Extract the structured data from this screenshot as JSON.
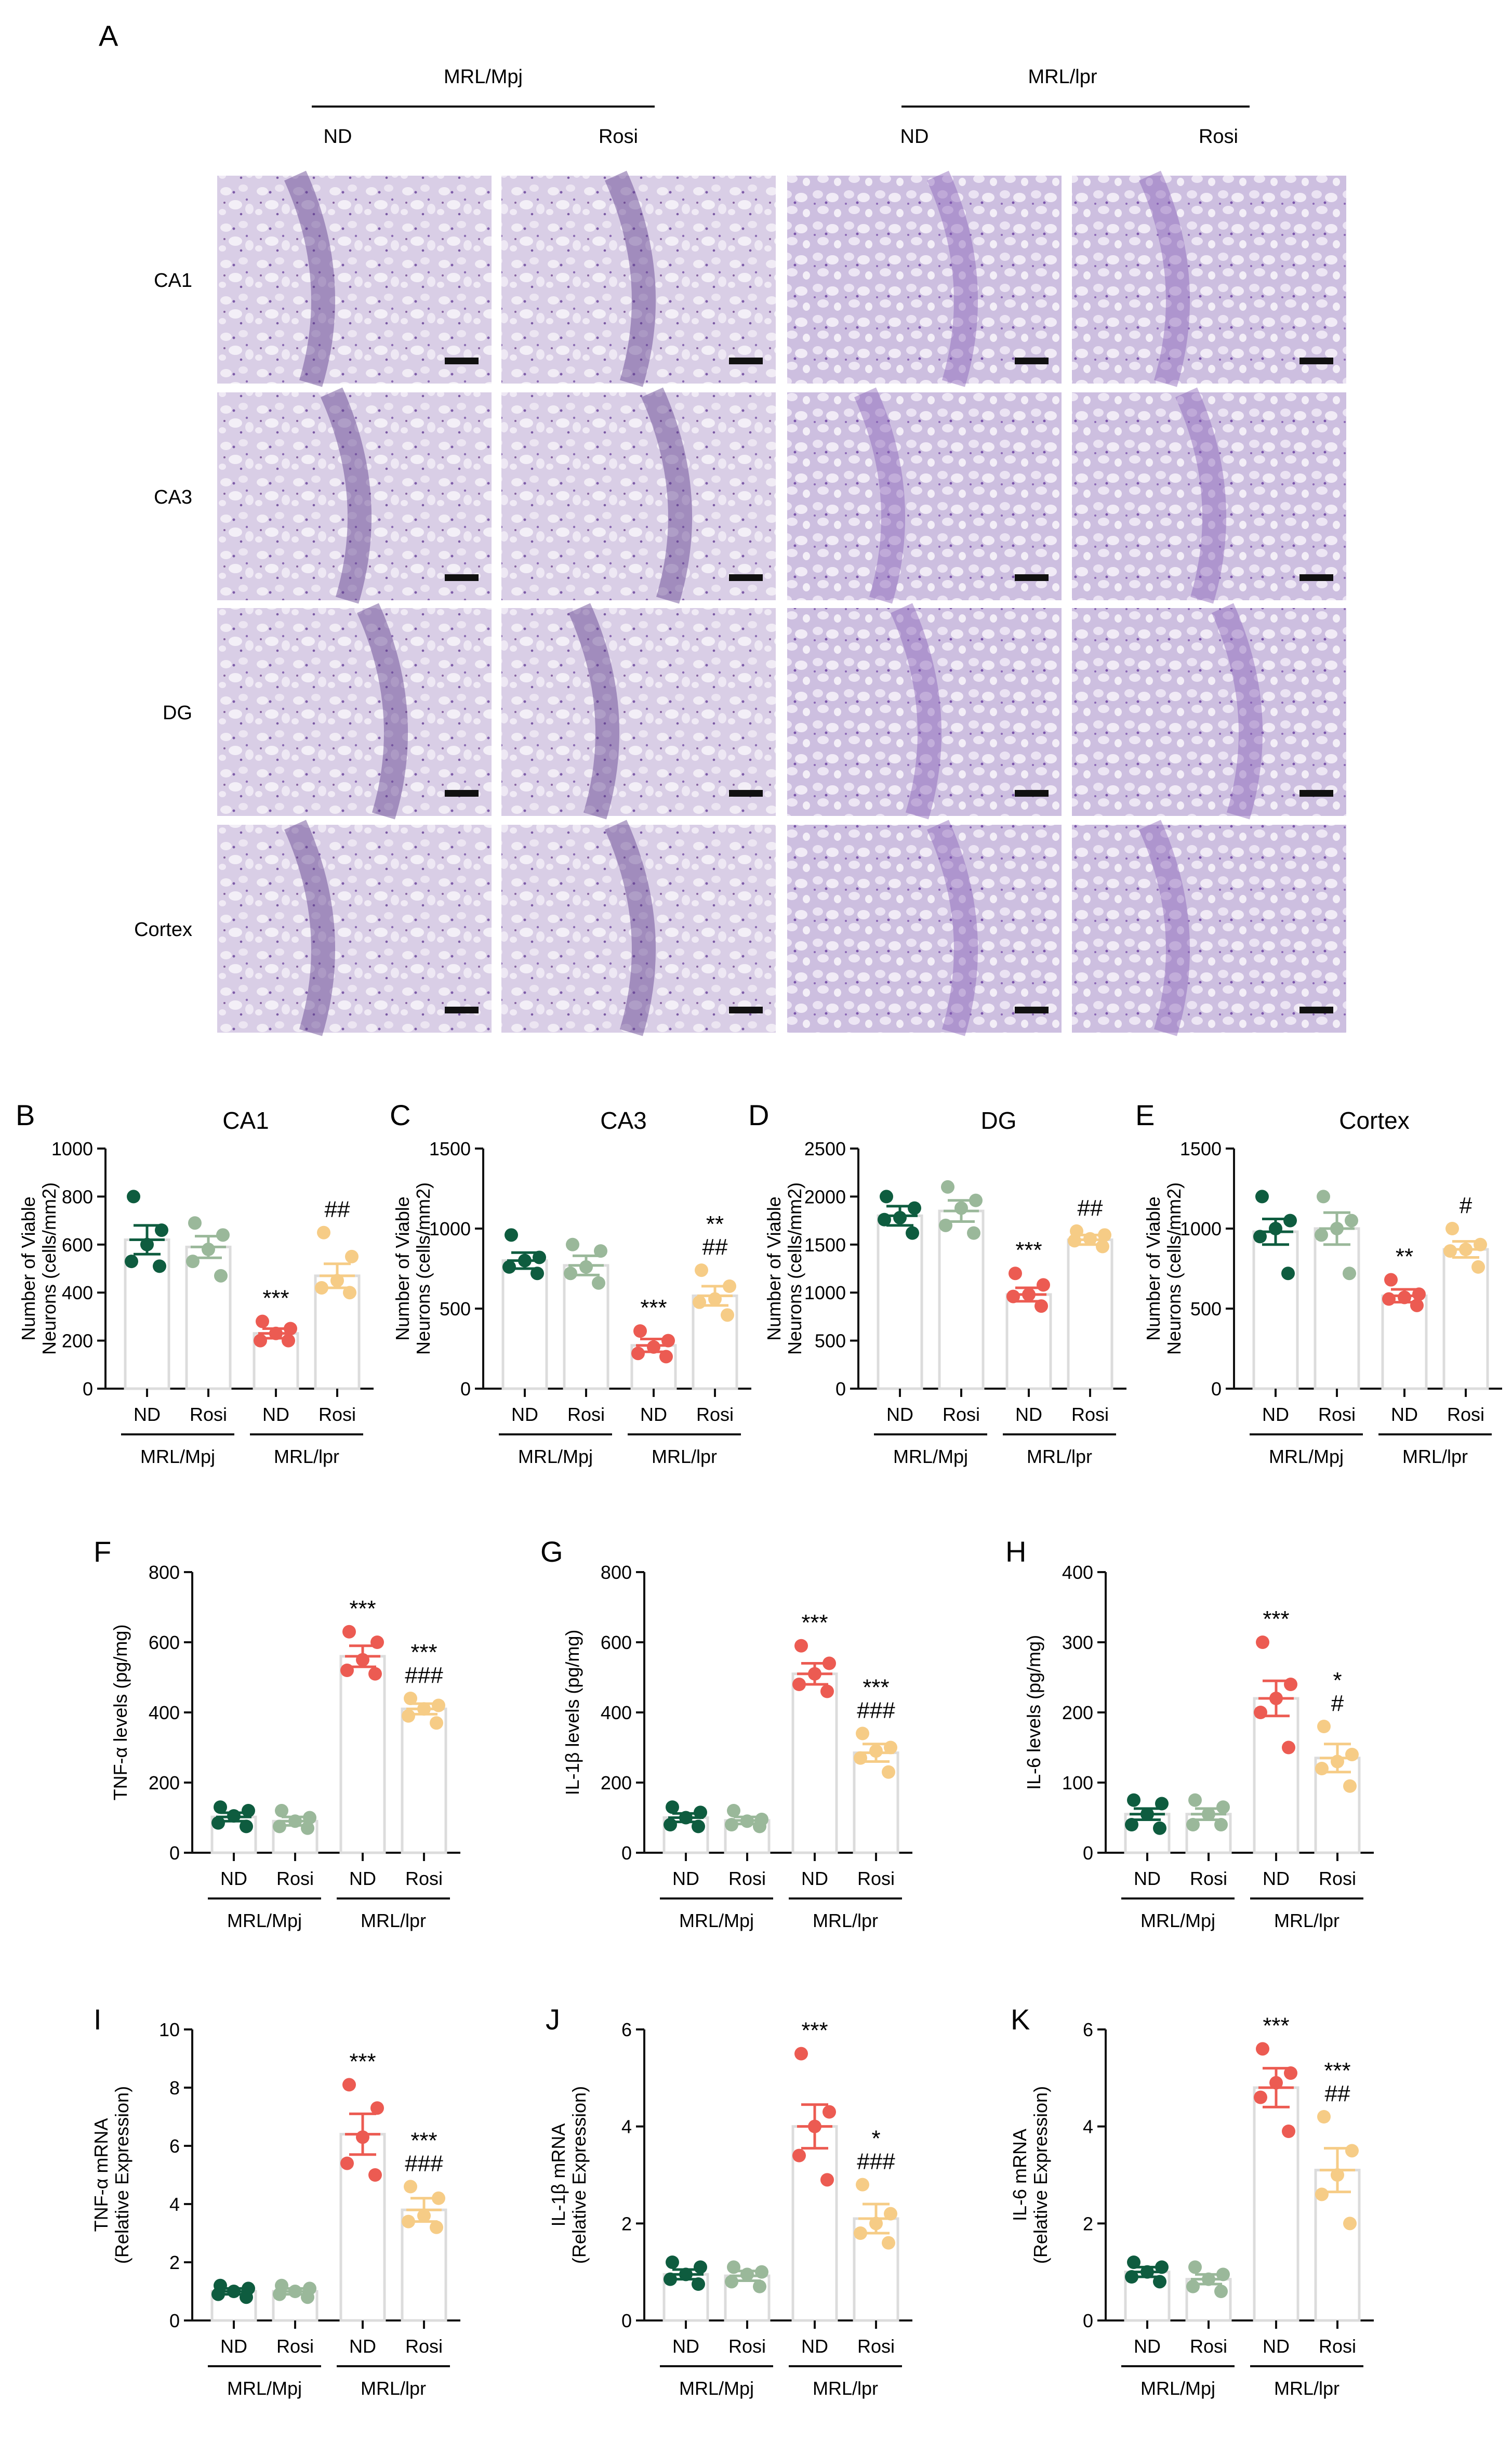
{
  "figure": {
    "panel_A": {
      "letter": "A",
      "strains": [
        "MRL/Mpj",
        "MRL/lpr"
      ],
      "conditions": [
        "ND",
        "Rosi",
        "ND",
        "Rosi"
      ],
      "regions": [
        "CA1",
        "CA3",
        "DG",
        "Cortex"
      ]
    },
    "colors": {
      "mpj_nd": "#0e5c3f",
      "mpj_rosi": "#9ab89a",
      "lpr_nd": "#ec5b52",
      "lpr_rosi": "#f6cc86",
      "bar_outline": "#dcdcdc",
      "tissue": "#cfc2de"
    },
    "group_labels": {
      "categories": [
        "ND",
        "Rosi",
        "ND",
        "Rosi"
      ],
      "strains": [
        "MRL/Mpj",
        "MRL/lpr"
      ]
    }
  },
  "chart_data": [
    {
      "panel": "B",
      "type": "bar",
      "title": "CA1",
      "ylabel": [
        "Number of Viable",
        "Neurons (cells/mm2)"
      ],
      "ylim": [
        0,
        1000
      ],
      "yticks": [
        0,
        200,
        400,
        600,
        800,
        1000
      ],
      "categories": [
        "ND",
        "Rosi",
        "ND",
        "Rosi"
      ],
      "means": [
        620,
        590,
        230,
        470
      ],
      "sem": [
        60,
        45,
        20,
        50
      ],
      "points": [
        [
          800,
          660,
          600,
          530,
          510
        ],
        [
          690,
          640,
          580,
          530,
          470
        ],
        [
          280,
          250,
          230,
          200,
          200
        ],
        [
          650,
          550,
          450,
          420,
          400
        ]
      ],
      "annotations": [
        [],
        [],
        [
          "***"
        ],
        [
          "##"
        ]
      ]
    },
    {
      "panel": "C",
      "type": "bar",
      "title": "CA3",
      "ylabel": [
        "Number of Viable",
        "Neurons (cells/mm2)"
      ],
      "ylim": [
        0,
        1500
      ],
      "yticks": [
        0,
        500,
        1000,
        1500
      ],
      "categories": [
        "ND",
        "Rosi",
        "ND",
        "Rosi"
      ],
      "means": [
        800,
        770,
        270,
        580
      ],
      "sem": [
        50,
        60,
        40,
        60
      ],
      "points": [
        [
          960,
          820,
          800,
          760,
          720
        ],
        [
          900,
          860,
          760,
          720,
          660
        ],
        [
          360,
          300,
          260,
          220,
          200
        ],
        [
          740,
          640,
          560,
          540,
          460
        ]
      ],
      "annotations": [
        [],
        [],
        [
          "***"
        ],
        [
          "**",
          "##"
        ]
      ]
    },
    {
      "panel": "D",
      "type": "bar",
      "title": "DG",
      "ylabel": [
        "Number of Viable",
        "Neurons (cells/mm2)"
      ],
      "ylim": [
        0,
        2500
      ],
      "yticks": [
        0,
        500,
        1000,
        1500,
        2000,
        2500
      ],
      "categories": [
        "ND",
        "Rosi",
        "ND",
        "Rosi"
      ],
      "means": [
        1800,
        1850,
        980,
        1550
      ],
      "sem": [
        100,
        110,
        70,
        50
      ],
      "points": [
        [
          2000,
          1880,
          1780,
          1760,
          1620
        ],
        [
          2100,
          1960,
          1880,
          1700,
          1620
        ],
        [
          1200,
          1080,
          980,
          960,
          860
        ],
        [
          1640,
          1600,
          1560,
          1540,
          1480
        ]
      ],
      "annotations": [
        [],
        [],
        [
          "***"
        ],
        [
          "##"
        ]
      ]
    },
    {
      "panel": "E",
      "type": "bar",
      "title": "Cortex",
      "ylabel": [
        "Number of Viable",
        "Neurons (cells/mm2)"
      ],
      "ylim": [
        0,
        1500
      ],
      "yticks": [
        0,
        500,
        1000,
        1500
      ],
      "categories": [
        "ND",
        "Rosi",
        "ND",
        "Rosi"
      ],
      "means": [
        980,
        1000,
        580,
        870
      ],
      "sem": [
        80,
        100,
        40,
        50
      ],
      "points": [
        [
          1200,
          1050,
          1000,
          950,
          720
        ],
        [
          1200,
          1050,
          1000,
          960,
          720
        ],
        [
          680,
          590,
          570,
          560,
          520
        ],
        [
          1000,
          900,
          870,
          860,
          760
        ]
      ],
      "annotations": [
        [],
        [],
        [
          "**"
        ],
        [
          "#"
        ]
      ]
    },
    {
      "panel": "F",
      "type": "bar",
      "title": "",
      "ylabel": [
        "TNF-α levels (pg/mg)"
      ],
      "ylim": [
        0,
        800
      ],
      "yticks": [
        0,
        200,
        400,
        600,
        800
      ],
      "categories": [
        "ND",
        "Rosi",
        "ND",
        "Rosi"
      ],
      "means": [
        102,
        90,
        560,
        410
      ],
      "sem": [
        12,
        12,
        30,
        15
      ],
      "points": [
        [
          130,
          120,
          105,
          85,
          75
        ],
        [
          120,
          100,
          90,
          75,
          70
        ],
        [
          630,
          600,
          550,
          520,
          510
        ],
        [
          440,
          420,
          410,
          390,
          370
        ]
      ],
      "annotations": [
        [],
        [],
        [
          "***"
        ],
        [
          "***",
          "###"
        ]
      ]
    },
    {
      "panel": "G",
      "type": "bar",
      "title": "",
      "ylabel": [
        "IL-1β levels (pg/mg)"
      ],
      "ylim": [
        0,
        800
      ],
      "yticks": [
        0,
        200,
        400,
        600,
        800
      ],
      "categories": [
        "ND",
        "Rosi",
        "ND",
        "Rosi"
      ],
      "means": [
        100,
        92,
        510,
        285
      ],
      "sem": [
        12,
        10,
        30,
        25
      ],
      "points": [
        [
          130,
          115,
          100,
          80,
          75
        ],
        [
          120,
          95,
          90,
          80,
          75
        ],
        [
          590,
          540,
          510,
          480,
          460
        ],
        [
          340,
          300,
          290,
          270,
          230
        ]
      ],
      "annotations": [
        [],
        [],
        [
          "***"
        ],
        [
          "***",
          "###"
        ]
      ]
    },
    {
      "panel": "H",
      "type": "bar",
      "title": "",
      "ylabel": [
        "IL-6 levels (pg/mg)"
      ],
      "ylim": [
        0,
        400
      ],
      "yticks": [
        0,
        100,
        200,
        300,
        400
      ],
      "categories": [
        "ND",
        "Rosi",
        "ND",
        "Rosi"
      ],
      "means": [
        55,
        55,
        220,
        135
      ],
      "sem": [
        8,
        8,
        25,
        20
      ],
      "points": [
        [
          75,
          70,
          55,
          40,
          35
        ],
        [
          75,
          65,
          55,
          40,
          40
        ],
        [
          300,
          240,
          220,
          200,
          150
        ],
        [
          180,
          140,
          130,
          120,
          95
        ]
      ],
      "annotations": [
        [],
        [],
        [
          "***"
        ],
        [
          "*",
          "#"
        ]
      ]
    },
    {
      "panel": "I",
      "type": "bar",
      "title": "",
      "ylabel": [
        "TNF-α  mRNA",
        "(Relative Expression)"
      ],
      "ylim": [
        0,
        10
      ],
      "yticks": [
        0,
        2,
        4,
        6,
        8,
        10
      ],
      "categories": [
        "ND",
        "Rosi",
        "ND",
        "Rosi"
      ],
      "means": [
        1.0,
        1.0,
        6.4,
        3.8
      ],
      "sem": [
        0.1,
        0.1,
        0.7,
        0.4
      ],
      "points": [
        [
          1.2,
          1.1,
          1.0,
          0.9,
          0.8
        ],
        [
          1.2,
          1.1,
          1.0,
          0.9,
          0.8
        ],
        [
          8.1,
          7.3,
          6.3,
          5.4,
          5.0
        ],
        [
          4.6,
          4.2,
          3.6,
          3.4,
          3.2
        ]
      ],
      "annotations": [
        [],
        [],
        [
          "***"
        ],
        [
          "***",
          "###"
        ]
      ]
    },
    {
      "panel": "J",
      "type": "bar",
      "title": "",
      "ylabel": [
        "IL-1β  mRNA",
        "(Relative Expression)"
      ],
      "ylim": [
        0,
        6
      ],
      "yticks": [
        0,
        2,
        4,
        6
      ],
      "categories": [
        "ND",
        "Rosi",
        "ND",
        "Rosi"
      ],
      "means": [
        0.95,
        0.92,
        4.0,
        2.1
      ],
      "sem": [
        0.1,
        0.1,
        0.45,
        0.3
      ],
      "points": [
        [
          1.2,
          1.1,
          0.95,
          0.85,
          0.75
        ],
        [
          1.1,
          1.0,
          0.95,
          0.8,
          0.7
        ],
        [
          5.5,
          4.3,
          4.0,
          3.4,
          2.9
        ],
        [
          2.8,
          2.2,
          2.0,
          1.8,
          1.6
        ]
      ],
      "annotations": [
        [],
        [],
        [
          "***"
        ],
        [
          "*",
          "###"
        ]
      ]
    },
    {
      "panel": "K",
      "type": "bar",
      "title": "",
      "ylabel": [
        "IL-6 mRNA",
        "(Relative Expression)"
      ],
      "ylim": [
        0,
        6
      ],
      "yticks": [
        0,
        2,
        4,
        6
      ],
      "categories": [
        "ND",
        "Rosi",
        "ND",
        "Rosi"
      ],
      "means": [
        1.0,
        0.85,
        4.8,
        3.1
      ],
      "sem": [
        0.1,
        0.1,
        0.4,
        0.45
      ],
      "points": [
        [
          1.2,
          1.1,
          1.0,
          0.9,
          0.8
        ],
        [
          1.1,
          0.95,
          0.85,
          0.7,
          0.6
        ],
        [
          5.6,
          5.1,
          4.9,
          4.6,
          3.9
        ],
        [
          4.2,
          3.5,
          3.0,
          2.6,
          2.0
        ]
      ],
      "annotations": [
        [],
        [],
        [
          "***"
        ],
        [
          "***",
          "##"
        ]
      ]
    }
  ]
}
